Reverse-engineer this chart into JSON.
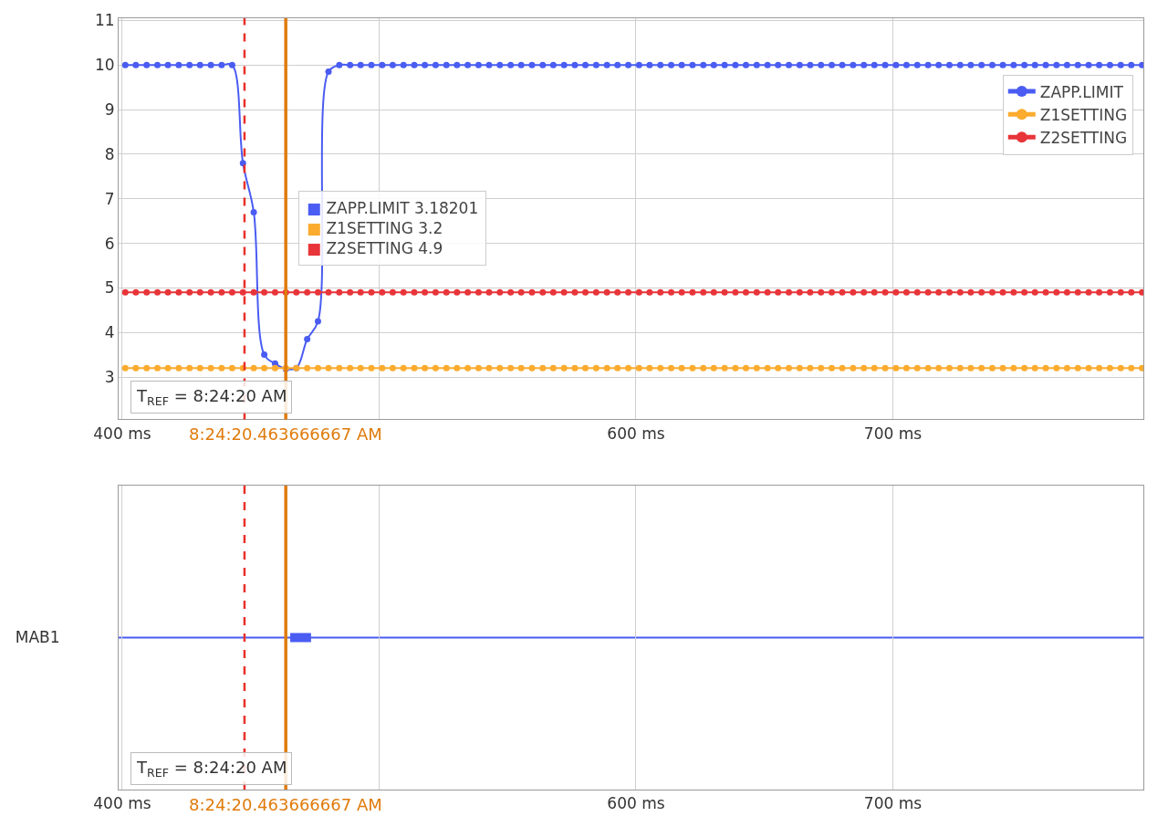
{
  "chart_data": [
    {
      "type": "line",
      "x": [
        401.2,
        405.3,
        409.5,
        413.7,
        417.8,
        422.0,
        426.2,
        430.3,
        434.5,
        438.7,
        442.8,
        447.0,
        451.2,
        455.3,
        459.5,
        463.7,
        467.8,
        472.0,
        476.2,
        480.3,
        484.5,
        488.7,
        492.8,
        497.0,
        501.2,
        505.3,
        509.5,
        513.7,
        517.8,
        522.0,
        526.2,
        530.3,
        534.5,
        538.7,
        542.8,
        547.0,
        551.2,
        555.3,
        559.5,
        563.7,
        567.8,
        572.0,
        576.2,
        580.3,
        584.5,
        588.7,
        592.8,
        597.0,
        601.2,
        605.3,
        609.5,
        613.7,
        617.8,
        622.0,
        626.2,
        630.3,
        634.5,
        638.7,
        642.8,
        647.0,
        651.2,
        655.3,
        659.5,
        663.7,
        667.8,
        672.0,
        676.2,
        680.3,
        684.5,
        688.7,
        692.8,
        697.0,
        701.2,
        705.3,
        709.5,
        713.7,
        717.8,
        722.0,
        726.2,
        730.3,
        734.5,
        738.7,
        742.8,
        747.0,
        751.2,
        755.3,
        759.5,
        763.7,
        767.8,
        772.0,
        776.2,
        780.3,
        784.5,
        788.7,
        792.8,
        797.0
      ],
      "series": [
        {
          "name": "ZAPP.LIMIT",
          "color": "#4a5cf2",
          "values": [
            10,
            10,
            10,
            10,
            10,
            10,
            10,
            10,
            10,
            10,
            10,
            7.8,
            6.7,
            3.5,
            3.3,
            3.18201,
            3.2,
            3.85,
            4.25,
            9.85,
            10,
            10,
            10,
            10,
            10,
            10,
            10,
            10,
            10,
            10,
            10,
            10,
            10,
            10,
            10,
            10,
            10,
            10,
            10,
            10,
            10,
            10,
            10,
            10,
            10,
            10,
            10,
            10,
            10,
            10,
            10,
            10,
            10,
            10,
            10,
            10,
            10,
            10,
            10,
            10,
            10,
            10,
            10,
            10,
            10,
            10,
            10,
            10,
            10,
            10,
            10,
            10,
            10,
            10,
            10,
            10,
            10,
            10,
            10,
            10,
            10,
            10,
            10,
            10,
            10,
            10,
            10,
            10,
            10,
            10,
            10,
            10,
            10,
            10,
            10,
            10
          ]
        },
        {
          "name": "Z1SETTING",
          "color": "#fbab2e",
          "values": [
            3.2,
            3.2,
            3.2,
            3.2,
            3.2,
            3.2,
            3.2,
            3.2,
            3.2,
            3.2,
            3.2,
            3.2,
            3.2,
            3.2,
            3.2,
            3.2,
            3.2,
            3.2,
            3.2,
            3.2,
            3.2,
            3.2,
            3.2,
            3.2,
            3.2,
            3.2,
            3.2,
            3.2,
            3.2,
            3.2,
            3.2,
            3.2,
            3.2,
            3.2,
            3.2,
            3.2,
            3.2,
            3.2,
            3.2,
            3.2,
            3.2,
            3.2,
            3.2,
            3.2,
            3.2,
            3.2,
            3.2,
            3.2,
            3.2,
            3.2,
            3.2,
            3.2,
            3.2,
            3.2,
            3.2,
            3.2,
            3.2,
            3.2,
            3.2,
            3.2,
            3.2,
            3.2,
            3.2,
            3.2,
            3.2,
            3.2,
            3.2,
            3.2,
            3.2,
            3.2,
            3.2,
            3.2,
            3.2,
            3.2,
            3.2,
            3.2,
            3.2,
            3.2,
            3.2,
            3.2,
            3.2,
            3.2,
            3.2,
            3.2,
            3.2,
            3.2,
            3.2,
            3.2,
            3.2,
            3.2,
            3.2,
            3.2,
            3.2,
            3.2,
            3.2,
            3.2
          ]
        },
        {
          "name": "Z2SETTING",
          "color": "#e8353a",
          "values": [
            4.9,
            4.9,
            4.9,
            4.9,
            4.9,
            4.9,
            4.9,
            4.9,
            4.9,
            4.9,
            4.9,
            4.9,
            4.9,
            4.9,
            4.9,
            4.9,
            4.9,
            4.9,
            4.9,
            4.9,
            4.9,
            4.9,
            4.9,
            4.9,
            4.9,
            4.9,
            4.9,
            4.9,
            4.9,
            4.9,
            4.9,
            4.9,
            4.9,
            4.9,
            4.9,
            4.9,
            4.9,
            4.9,
            4.9,
            4.9,
            4.9,
            4.9,
            4.9,
            4.9,
            4.9,
            4.9,
            4.9,
            4.9,
            4.9,
            4.9,
            4.9,
            4.9,
            4.9,
            4.9,
            4.9,
            4.9,
            4.9,
            4.9,
            4.9,
            4.9,
            4.9,
            4.9,
            4.9,
            4.9,
            4.9,
            4.9,
            4.9,
            4.9,
            4.9,
            4.9,
            4.9,
            4.9,
            4.9,
            4.9,
            4.9,
            4.9,
            4.9,
            4.9,
            4.9,
            4.9,
            4.9,
            4.9,
            4.9,
            4.9,
            4.9,
            4.9,
            4.9,
            4.9,
            4.9,
            4.9,
            4.9,
            4.9,
            4.9,
            4.9,
            4.9,
            4.9
          ]
        }
      ],
      "xlim": [
        398.6,
        797.5
      ],
      "xticks": [
        {
          "value": 400,
          "label": "400 ms"
        },
        {
          "value": 500,
          "label": null
        },
        {
          "value": 600,
          "label": "600 ms"
        },
        {
          "value": 700,
          "label": "700 ms"
        }
      ],
      "ylim": [
        2.05,
        11.05
      ],
      "yticks": [
        3,
        4,
        5,
        6,
        7,
        8,
        9,
        10,
        11
      ],
      "grid": true,
      "legend": "top right",
      "marker": "circle",
      "ref_lines": [
        {
          "axis": "x",
          "value": 447.6,
          "color": "#e8302a",
          "line_style": "dashed"
        },
        {
          "axis": "x",
          "value": 463.666667,
          "color": "#e07b0c",
          "line_style": "solid"
        }
      ],
      "annotations": [
        "■ ZAPP.LIMIT 3.18201",
        "■ Z1SETTING 3.2",
        "■ Z2SETTING 4.9",
        "T$_{REF}$ = 8:24:20 AM",
        "8:24:20.463666667 AM"
      ]
    },
    {
      "type": "bar",
      "orientation": "horizontal",
      "categories": [
        "MAB1"
      ],
      "base": [
        465.4
      ],
      "values": [
        8.1
      ],
      "color": "#4a5cf2",
      "xlim": [
        398.6,
        797.5
      ],
      "xticks": [
        {
          "value": 400,
          "label": "400 ms"
        },
        {
          "value": 500,
          "label": null
        },
        {
          "value": 600,
          "label": "600 ms"
        },
        {
          "value": 700,
          "label": "700 ms"
        }
      ],
      "grid": "x",
      "ref_lines": [
        {
          "axis": "y",
          "value": "MAB1",
          "color": "#4a5cf2",
          "line_style": "solid"
        },
        {
          "axis": "x",
          "value": 447.6,
          "color": "#e8302a",
          "line_style": "dashed"
        },
        {
          "axis": "x",
          "value": 463.666667,
          "color": "#e07b0c",
          "line_style": "solid"
        }
      ],
      "annotations": [
        "T$_{REF}$ = 8:24:20 AM",
        "8:24:20.463666667 AM"
      ]
    }
  ]
}
